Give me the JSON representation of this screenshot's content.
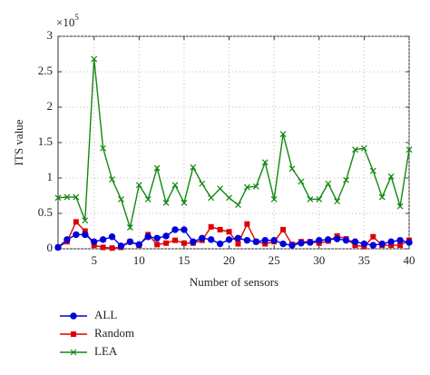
{
  "chart_data": {
    "type": "line",
    "xlabel": "Number of sensors",
    "ylabel": "ITS value",
    "y_scale_label": {
      "base": "×10",
      "exponent": "5"
    },
    "x": [
      1,
      2,
      3,
      4,
      5,
      6,
      7,
      8,
      9,
      10,
      11,
      12,
      13,
      14,
      15,
      16,
      17,
      18,
      19,
      20,
      21,
      22,
      23,
      24,
      25,
      26,
      27,
      28,
      29,
      30,
      31,
      32,
      33,
      34,
      35,
      36,
      37,
      38,
      39,
      40
    ],
    "xlim": [
      1,
      40
    ],
    "xticks": [
      5,
      10,
      15,
      20,
      25,
      30,
      35,
      40
    ],
    "ylim": [
      0,
      3
    ],
    "yticks": [
      0,
      0.5,
      1,
      1.5,
      2,
      2.5,
      3
    ],
    "grid": true,
    "legend": "below",
    "series": [
      {
        "name": "ALL",
        "color": "#0000dd",
        "marker": "circle",
        "values": [
          0.02,
          0.13,
          0.2,
          0.2,
          0.1,
          0.13,
          0.17,
          0.04,
          0.1,
          0.06,
          0.17,
          0.15,
          0.18,
          0.27,
          0.27,
          0.1,
          0.15,
          0.13,
          0.07,
          0.13,
          0.15,
          0.12,
          0.1,
          0.12,
          0.12,
          0.07,
          0.05,
          0.08,
          0.09,
          0.12,
          0.13,
          0.14,
          0.12,
          0.1,
          0.07,
          0.05,
          0.07,
          0.1,
          0.12,
          0.09
        ]
      },
      {
        "name": "Random",
        "color": "#dd0000",
        "marker": "square",
        "values": [
          0.02,
          0.1,
          0.38,
          0.25,
          0.05,
          0.02,
          0.01,
          0.02,
          0.1,
          0.05,
          0.2,
          0.06,
          0.08,
          0.12,
          0.08,
          0.08,
          0.12,
          0.31,
          0.27,
          0.24,
          0.07,
          0.35,
          0.1,
          0.07,
          0.1,
          0.27,
          0.06,
          0.1,
          0.1,
          0.08,
          0.11,
          0.18,
          0.14,
          0.05,
          0.03,
          0.17,
          0.05,
          0.05,
          0.05,
          0.12
        ]
      },
      {
        "name": "LEA",
        "color": "#118811",
        "marker": "x",
        "values": [
          0.72,
          0.73,
          0.73,
          0.4,
          2.68,
          1.42,
          0.98,
          0.7,
          0.3,
          0.9,
          0.7,
          1.14,
          0.65,
          0.9,
          0.65,
          1.15,
          0.92,
          0.72,
          0.85,
          0.72,
          0.62,
          0.87,
          0.88,
          1.22,
          0.7,
          1.62,
          1.13,
          0.95,
          0.7,
          0.7,
          0.92,
          0.67,
          0.97,
          1.4,
          1.42,
          1.1,
          0.73,
          1.02,
          0.6,
          1.4
        ]
      }
    ]
  }
}
